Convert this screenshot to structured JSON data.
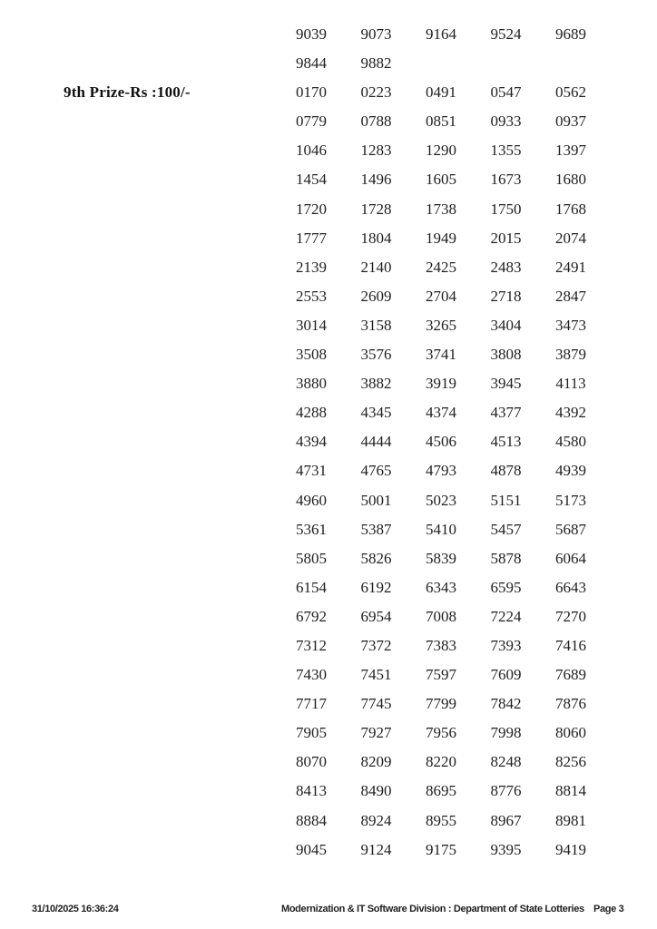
{
  "prize_section": {
    "label": "9th Prize-Rs :100/-"
  },
  "rows": [
    {
      "label": "",
      "numbers": [
        "9039",
        "9073",
        "9164",
        "9524",
        "9689"
      ]
    },
    {
      "label": "",
      "numbers": [
        "9844",
        "9882"
      ]
    },
    {
      "label": "9th Prize-Rs :100/-",
      "numbers": [
        "0170",
        "0223",
        "0491",
        "0547",
        "0562"
      ]
    },
    {
      "label": "",
      "numbers": [
        "0779",
        "0788",
        "0851",
        "0933",
        "0937"
      ]
    },
    {
      "label": "",
      "numbers": [
        "1046",
        "1283",
        "1290",
        "1355",
        "1397"
      ]
    },
    {
      "label": "",
      "numbers": [
        "1454",
        "1496",
        "1605",
        "1673",
        "1680"
      ]
    },
    {
      "label": "",
      "numbers": [
        "1720",
        "1728",
        "1738",
        "1750",
        "1768"
      ]
    },
    {
      "label": "",
      "numbers": [
        "1777",
        "1804",
        "1949",
        "2015",
        "2074"
      ]
    },
    {
      "label": "",
      "numbers": [
        "2139",
        "2140",
        "2425",
        "2483",
        "2491"
      ]
    },
    {
      "label": "",
      "numbers": [
        "2553",
        "2609",
        "2704",
        "2718",
        "2847"
      ]
    },
    {
      "label": "",
      "numbers": [
        "3014",
        "3158",
        "3265",
        "3404",
        "3473"
      ]
    },
    {
      "label": "",
      "numbers": [
        "3508",
        "3576",
        "3741",
        "3808",
        "3879"
      ]
    },
    {
      "label": "",
      "numbers": [
        "3880",
        "3882",
        "3919",
        "3945",
        "4113"
      ]
    },
    {
      "label": "",
      "numbers": [
        "4288",
        "4345",
        "4374",
        "4377",
        "4392"
      ]
    },
    {
      "label": "",
      "numbers": [
        "4394",
        "4444",
        "4506",
        "4513",
        "4580"
      ]
    },
    {
      "label": "",
      "numbers": [
        "4731",
        "4765",
        "4793",
        "4878",
        "4939"
      ]
    },
    {
      "label": "",
      "numbers": [
        "4960",
        "5001",
        "5023",
        "5151",
        "5173"
      ]
    },
    {
      "label": "",
      "numbers": [
        "5361",
        "5387",
        "5410",
        "5457",
        "5687"
      ]
    },
    {
      "label": "",
      "numbers": [
        "5805",
        "5826",
        "5839",
        "5878",
        "6064"
      ]
    },
    {
      "label": "",
      "numbers": [
        "6154",
        "6192",
        "6343",
        "6595",
        "6643"
      ]
    },
    {
      "label": "",
      "numbers": [
        "6792",
        "6954",
        "7008",
        "7224",
        "7270"
      ]
    },
    {
      "label": "",
      "numbers": [
        "7312",
        "7372",
        "7383",
        "7393",
        "7416"
      ]
    },
    {
      "label": "",
      "numbers": [
        "7430",
        "7451",
        "7597",
        "7609",
        "7689"
      ]
    },
    {
      "label": "",
      "numbers": [
        "7717",
        "7745",
        "7799",
        "7842",
        "7876"
      ]
    },
    {
      "label": "",
      "numbers": [
        "7905",
        "7927",
        "7956",
        "7998",
        "8060"
      ]
    },
    {
      "label": "",
      "numbers": [
        "8070",
        "8209",
        "8220",
        "8248",
        "8256"
      ]
    },
    {
      "label": "",
      "numbers": [
        "8413",
        "8490",
        "8695",
        "8776",
        "8814"
      ]
    },
    {
      "label": "",
      "numbers": [
        "8884",
        "8924",
        "8955",
        "8967",
        "8981"
      ]
    },
    {
      "label": "",
      "numbers": [
        "9045",
        "9124",
        "9175",
        "9395",
        "9419"
      ]
    }
  ],
  "footer": {
    "datetime": "31/10/2025 16:36:24",
    "division": "Modernization & IT Software Division : Department of State Lotteries",
    "page_number": "Page 3"
  }
}
